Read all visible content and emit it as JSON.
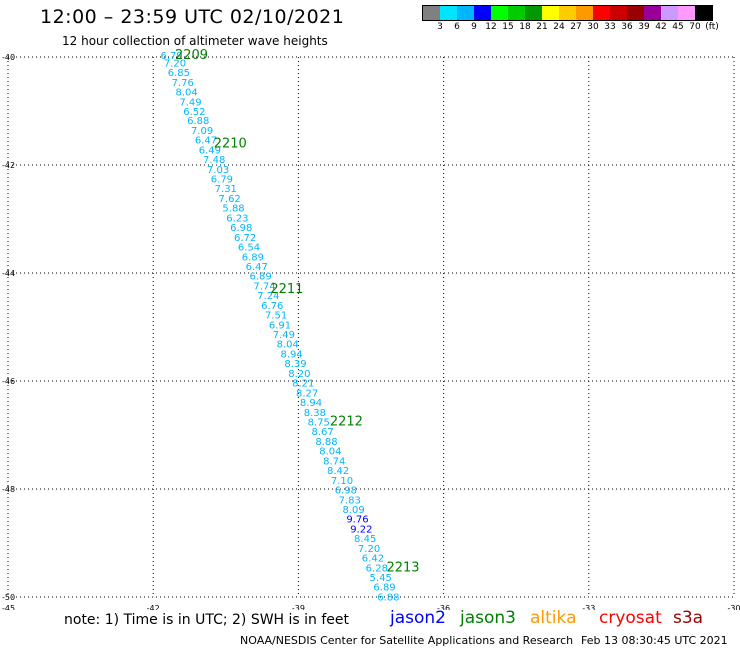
{
  "title": "12:00 – 23:59 UTC 02/10/2021",
  "subtitle": "12 hour collection of altimeter wave heights",
  "scale": {
    "colors": [
      "#808080",
      "#00e5ff",
      "#00b7ff",
      "#0000ff",
      "#00ff00",
      "#00cc00",
      "#009900",
      "#ffff00",
      "#ffcc00",
      "#ff9900",
      "#ff0000",
      "#cc0000",
      "#990000",
      "#990099",
      "#cc99ff",
      "#ff99ff",
      "#000000"
    ],
    "labels": [
      "3",
      "6",
      "9",
      "12",
      "15",
      "18",
      "21",
      "24",
      "27",
      "30",
      "33",
      "36",
      "39",
      "42",
      "45",
      "70",
      "(ft)"
    ]
  },
  "map": {
    "lat_ticks": [
      "-40",
      "-42",
      "-44",
      "-46",
      "-48",
      "-50"
    ],
    "lon_ticks": [
      "-45",
      "-42",
      "-39",
      "-36",
      "-33",
      "-30"
    ],
    "value_colors": {
      "cyan": "#00b7ff",
      "blue": "#0000ff"
    },
    "observations": [
      {
        "lon": -41.85,
        "lat": -39.96,
        "value": "6.79",
        "color": "cyan"
      },
      {
        "lon": -41.78,
        "lat": -40.1,
        "value": "7.20",
        "color": "cyan"
      },
      {
        "lon": -41.7,
        "lat": -40.28,
        "value": "6.85",
        "color": "cyan"
      },
      {
        "lon": -41.62,
        "lat": -40.46,
        "value": "7.76",
        "color": "cyan"
      },
      {
        "lon": -41.54,
        "lat": -40.64,
        "value": "8.04",
        "color": "cyan"
      },
      {
        "lon": -41.46,
        "lat": -40.82,
        "value": "7.49",
        "color": "cyan"
      },
      {
        "lon": -41.38,
        "lat": -41.0,
        "value": "6.52",
        "color": "cyan"
      },
      {
        "lon": -41.3,
        "lat": -41.17,
        "value": "6.88",
        "color": "cyan"
      },
      {
        "lon": -41.22,
        "lat": -41.35,
        "value": "7.09",
        "color": "cyan"
      },
      {
        "lon": -41.14,
        "lat": -41.53,
        "value": "6.47",
        "color": "cyan"
      },
      {
        "lon": -41.06,
        "lat": -41.71,
        "value": "6.49",
        "color": "cyan"
      },
      {
        "lon": -40.97,
        "lat": -41.89,
        "value": "7.48",
        "color": "cyan"
      },
      {
        "lon": -40.89,
        "lat": -42.07,
        "value": "7.03",
        "color": "cyan"
      },
      {
        "lon": -40.81,
        "lat": -42.25,
        "value": "6.79",
        "color": "cyan"
      },
      {
        "lon": -40.73,
        "lat": -42.43,
        "value": "7.31",
        "color": "cyan"
      },
      {
        "lon": -40.65,
        "lat": -42.61,
        "value": "7.62",
        "color": "cyan"
      },
      {
        "lon": -40.57,
        "lat": -42.79,
        "value": "5.88",
        "color": "cyan"
      },
      {
        "lon": -40.49,
        "lat": -42.97,
        "value": "6.23",
        "color": "cyan"
      },
      {
        "lon": -40.41,
        "lat": -43.15,
        "value": "6.98",
        "color": "cyan"
      },
      {
        "lon": -40.33,
        "lat": -43.33,
        "value": "6.72",
        "color": "cyan"
      },
      {
        "lon": -40.25,
        "lat": -43.51,
        "value": "6.54",
        "color": "cyan"
      },
      {
        "lon": -40.17,
        "lat": -43.69,
        "value": "6.89",
        "color": "cyan"
      },
      {
        "lon": -40.09,
        "lat": -43.87,
        "value": "6.47",
        "color": "cyan"
      },
      {
        "lon": -40.01,
        "lat": -44.05,
        "value": "6.89",
        "color": "cyan"
      },
      {
        "lon": -39.93,
        "lat": -44.23,
        "value": "7.74",
        "color": "cyan"
      },
      {
        "lon": -39.85,
        "lat": -44.41,
        "value": "7.24",
        "color": "cyan"
      },
      {
        "lon": -39.77,
        "lat": -44.59,
        "value": "6.76",
        "color": "cyan"
      },
      {
        "lon": -39.69,
        "lat": -44.77,
        "value": "7.51",
        "color": "cyan"
      },
      {
        "lon": -39.61,
        "lat": -44.95,
        "value": "6.91",
        "color": "cyan"
      },
      {
        "lon": -39.53,
        "lat": -45.13,
        "value": "7.49",
        "color": "cyan"
      },
      {
        "lon": -39.45,
        "lat": -45.31,
        "value": "8.04",
        "color": "cyan"
      },
      {
        "lon": -39.37,
        "lat": -45.49,
        "value": "8.94",
        "color": "cyan"
      },
      {
        "lon": -39.29,
        "lat": -45.67,
        "value": "8.39",
        "color": "cyan"
      },
      {
        "lon": -39.21,
        "lat": -45.85,
        "value": "8.20",
        "color": "cyan"
      },
      {
        "lon": -39.13,
        "lat": -46.03,
        "value": "8.21",
        "color": "cyan"
      },
      {
        "lon": -39.05,
        "lat": -46.21,
        "value": "8.27",
        "color": "cyan"
      },
      {
        "lon": -38.97,
        "lat": -46.39,
        "value": "8.94",
        "color": "cyan"
      },
      {
        "lon": -38.89,
        "lat": -46.57,
        "value": "8.38",
        "color": "cyan"
      },
      {
        "lon": -38.81,
        "lat": -46.75,
        "value": "8.75",
        "color": "cyan"
      },
      {
        "lon": -38.73,
        "lat": -46.93,
        "value": "8.67",
        "color": "cyan"
      },
      {
        "lon": -38.65,
        "lat": -47.11,
        "value": "8.88",
        "color": "cyan"
      },
      {
        "lon": -38.57,
        "lat": -47.29,
        "value": "8.04",
        "color": "cyan"
      },
      {
        "lon": -38.49,
        "lat": -47.47,
        "value": "8.74",
        "color": "cyan"
      },
      {
        "lon": -38.41,
        "lat": -47.65,
        "value": "8.42",
        "color": "cyan"
      },
      {
        "lon": -38.33,
        "lat": -47.83,
        "value": "7.10",
        "color": "cyan"
      },
      {
        "lon": -38.25,
        "lat": -48.01,
        "value": "6.98",
        "color": "cyan"
      },
      {
        "lon": -38.17,
        "lat": -48.19,
        "value": "7.83",
        "color": "cyan"
      },
      {
        "lon": -38.09,
        "lat": -48.37,
        "value": "8.09",
        "color": "cyan"
      },
      {
        "lon": -38.01,
        "lat": -48.55,
        "value": "9.76",
        "color": "blue"
      },
      {
        "lon": -37.93,
        "lat": -48.73,
        "value": "9.22",
        "color": "blue"
      },
      {
        "lon": -37.85,
        "lat": -48.91,
        "value": "8.45",
        "color": "cyan"
      },
      {
        "lon": -37.77,
        "lat": -49.09,
        "value": "7.20",
        "color": "cyan"
      },
      {
        "lon": -37.69,
        "lat": -49.27,
        "value": "6.42",
        "color": "cyan"
      },
      {
        "lon": -37.61,
        "lat": -49.45,
        "value": "6.28",
        "color": "cyan"
      },
      {
        "lon": -37.53,
        "lat": -49.63,
        "value": "5.45",
        "color": "cyan"
      },
      {
        "lon": -37.45,
        "lat": -49.81,
        "value": "6.89",
        "color": "cyan"
      },
      {
        "lon": -37.37,
        "lat": -49.99,
        "value": "6.88",
        "color": "cyan"
      }
    ],
    "time_labels": [
      {
        "lon": -41.55,
        "lat": -39.96,
        "text": "2209"
      },
      {
        "lon": -40.75,
        "lat": -41.6,
        "text": "2210"
      },
      {
        "lon": -39.58,
        "lat": -44.3,
        "text": "2211"
      },
      {
        "lon": -38.35,
        "lat": -46.75,
        "text": "2212"
      },
      {
        "lon": -37.18,
        "lat": -49.45,
        "text": "2213"
      }
    ],
    "time_label_color": "#008000"
  },
  "footer": {
    "note": "note: 1) Time is in UTC; 2) SWH is in feet",
    "satellites": [
      {
        "name": "jason2",
        "color": "#0000ff"
      },
      {
        "name": "jason3",
        "color": "#008000"
      },
      {
        "name": "altika",
        "color": "#ff9900"
      },
      {
        "name": "cryosat",
        "color": "#ff0000"
      },
      {
        "name": "s3a",
        "color": "#990000"
      }
    ],
    "credit": "NOAA/NESDIS Center for Satellite Applications and Research",
    "date": "Feb 13 08:30:45 UTC 2021"
  }
}
